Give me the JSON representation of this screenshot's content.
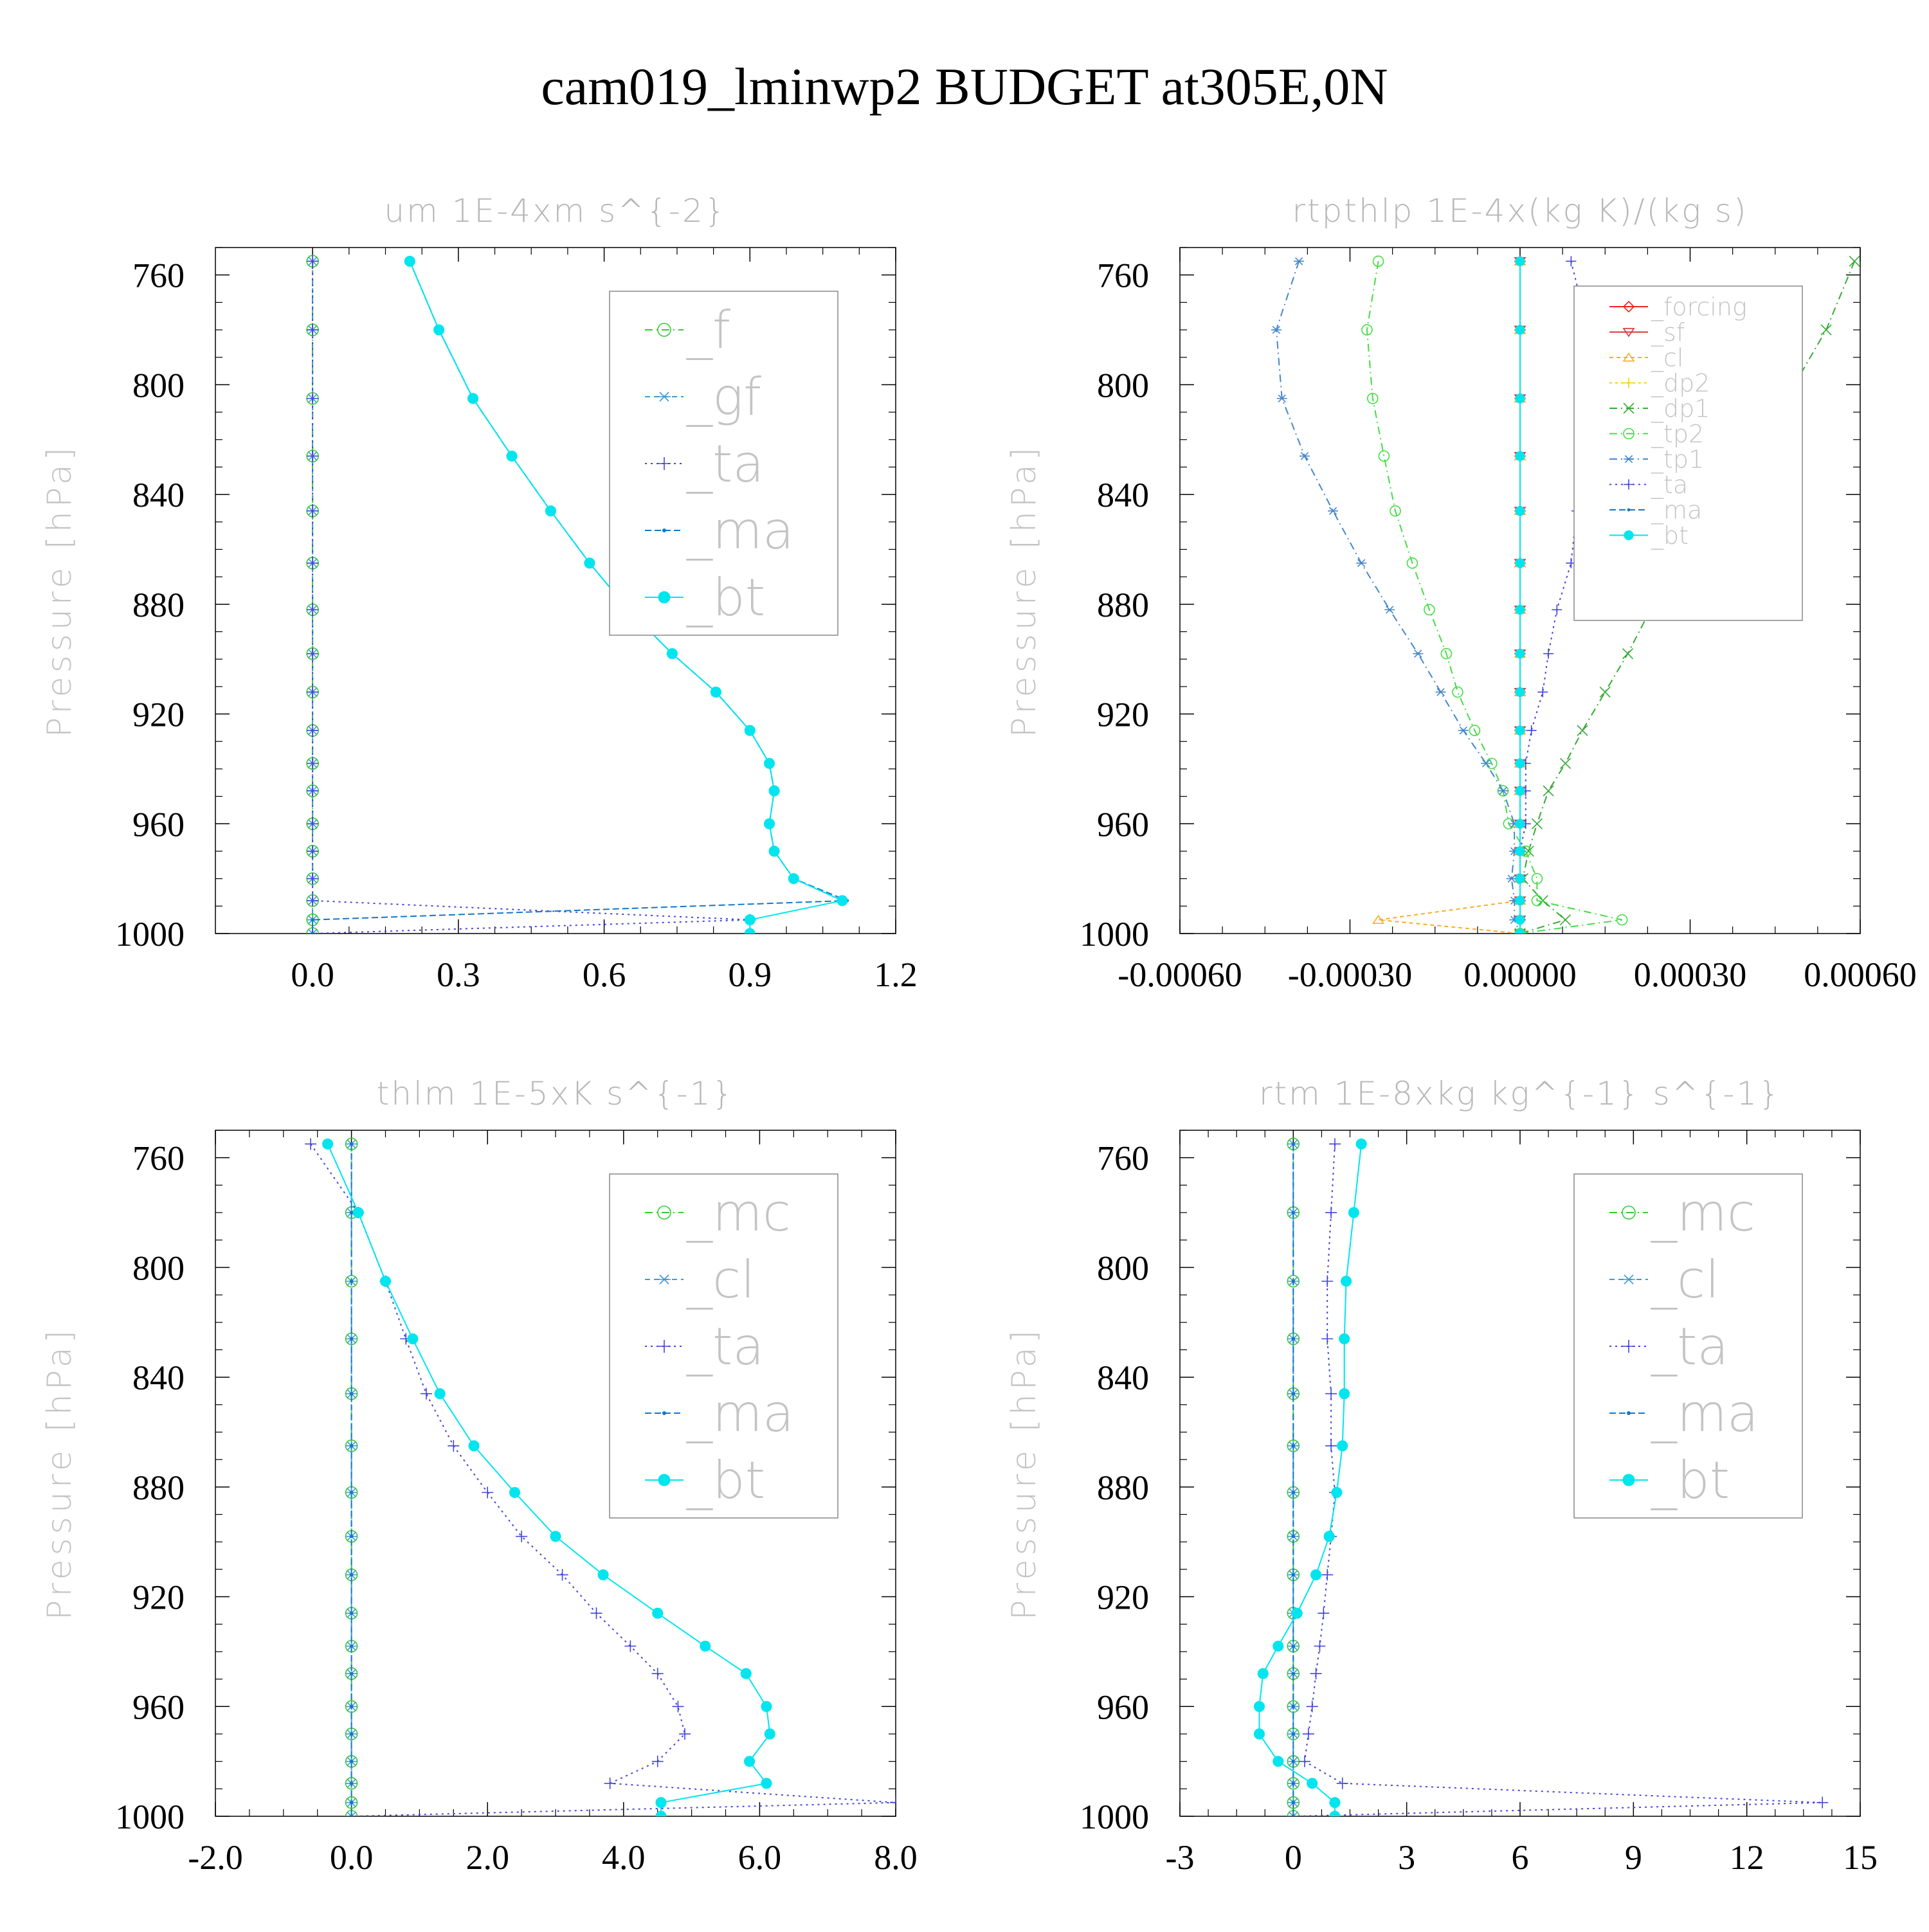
{
  "figure": {
    "title": "cam019_lminwp2  BUDGET at305E,0N"
  },
  "chart_data": [
    {
      "type": "line",
      "title": "um   1E-4xm s^{-2}",
      "ylabel": "Pressure [hPa]",
      "xlim": [
        -0.2,
        1.2
      ],
      "ylim": [
        1000,
        750
      ],
      "xticks": [
        0.0,
        0.3,
        0.6,
        0.9,
        1.2
      ],
      "xtick_labels": [
        "0.0",
        "0.3",
        "0.6",
        "0.9",
        "1.2"
      ],
      "yticks": [
        760,
        800,
        840,
        880,
        920,
        960,
        1000
      ],
      "legend_position": "upper-right",
      "legend_size": "large",
      "y": [
        755,
        780,
        805,
        826,
        846,
        865,
        882,
        898,
        912,
        926,
        938,
        948,
        960,
        970,
        980,
        988,
        995,
        1000
      ],
      "series": [
        {
          "name": "_f",
          "color": "#33cc33",
          "dash": "12 6 2 6",
          "marker": "circle-open",
          "x": [
            0,
            0,
            0,
            0,
            0,
            0,
            0,
            0,
            0,
            0,
            0,
            0,
            0,
            0,
            0,
            0,
            0,
            0
          ]
        },
        {
          "name": "_gf",
          "color": "#4499cc",
          "dash": "8 6",
          "marker": "asterisk",
          "x": [
            0,
            0,
            0,
            0,
            0,
            0,
            0,
            0,
            0,
            0,
            0,
            0,
            0,
            0,
            0,
            0,
            0,
            0
          ]
        },
        {
          "name": "_ta",
          "color": "#4444dd",
          "dash": "3 6",
          "marker": "plus",
          "x": [
            0,
            0,
            0,
            0,
            0,
            0,
            0,
            0,
            0,
            0,
            0,
            0,
            0,
            0,
            0,
            0,
            0.9,
            0
          ]
        },
        {
          "name": "_ma",
          "color": "#1177cc",
          "dash": "10 5",
          "marker": "dot",
          "x": [
            0.2,
            0.26,
            0.33,
            0.41,
            0.49,
            0.57,
            0.65,
            0.74,
            0.83,
            0.9,
            0.94,
            0.95,
            0.94,
            0.95,
            0.99,
            1.1,
            0,
            0
          ]
        },
        {
          "name": "_bt",
          "color": "#00e5ee",
          "dash": "",
          "marker": "dot-filled",
          "x": [
            0.2,
            0.26,
            0.33,
            0.41,
            0.49,
            0.57,
            0.65,
            0.74,
            0.83,
            0.9,
            0.94,
            0.95,
            0.94,
            0.95,
            0.99,
            1.09,
            0.9,
            0.9
          ]
        }
      ]
    },
    {
      "type": "line",
      "title": "rtpthlp   1E-4x(kg K)/(kg s)",
      "ylabel": "Pressure [hPa]",
      "xlim": [
        -0.0006,
        0.0006
      ],
      "ylim": [
        1000,
        750
      ],
      "xticks": [
        -0.0006,
        -0.0003,
        0.0,
        0.0003,
        0.0006
      ],
      "xtick_labels": [
        "-0.00060",
        "-0.00030",
        "0.00000",
        "0.00030",
        "0.00060"
      ],
      "yticks": [
        760,
        800,
        840,
        880,
        920,
        960,
        1000
      ],
      "legend_position": "upper-right",
      "legend_size": "small",
      "y": [
        755,
        780,
        805,
        826,
        846,
        865,
        882,
        898,
        912,
        926,
        938,
        948,
        960,
        970,
        980,
        988,
        995,
        1000
      ],
      "series": [
        {
          "name": "_forcing",
          "color": "#ee2222",
          "dash": "",
          "marker": "diamond-open",
          "x": [
            0,
            0,
            0,
            0,
            0,
            0,
            0,
            0,
            0,
            0,
            0,
            0,
            0,
            0,
            0,
            0,
            0,
            0
          ]
        },
        {
          "name": "_sf",
          "color": "#dd3333",
          "dash": "",
          "marker": "triangle-down",
          "x": [
            0,
            0,
            0,
            0,
            0,
            0,
            0,
            0,
            0,
            0,
            0,
            0,
            0,
            0,
            0,
            0,
            0,
            0
          ]
        },
        {
          "name": "_cl",
          "color": "#ffaa22",
          "dash": "6 5",
          "marker": "triangle-up",
          "x": [
            0,
            0,
            0,
            0,
            0,
            0,
            0,
            0,
            0,
            0,
            0,
            0,
            0,
            0,
            0,
            0,
            -0.00025,
            0
          ]
        },
        {
          "name": "_dp2",
          "color": "#ffcc00",
          "dash": "4 5",
          "marker": "plus",
          "x": [
            0,
            0,
            0,
            0,
            0,
            0,
            0,
            0,
            0,
            0,
            0,
            0,
            0,
            0,
            0,
            0,
            0,
            0
          ]
        },
        {
          "name": "_dp1",
          "color": "#33aa33",
          "dash": "12 6 2 6",
          "marker": "x",
          "x": [
            0.00059,
            0.00054,
            0.00047,
            0.0004,
            0.00034,
            0.00028,
            0.00023,
            0.00019,
            0.00015,
            0.00011,
            8e-05,
            5e-05,
            3e-05,
            1.5e-05,
            5e-06,
            4e-05,
            8e-05,
            0
          ]
        },
        {
          "name": "_tp2",
          "color": "#44dd44",
          "dash": "12 6 2 6",
          "marker": "circle-open",
          "x": [
            -0.00025,
            -0.00027,
            -0.00026,
            -0.00024,
            -0.00022,
            -0.00019,
            -0.00016,
            -0.00013,
            -0.00011,
            -8e-05,
            -5e-05,
            -3e-05,
            -2e-05,
            1e-05,
            3e-05,
            3e-05,
            0.00018,
            0
          ]
        },
        {
          "name": "_tp1",
          "color": "#4488cc",
          "dash": "12 6 2 6",
          "marker": "asterisk",
          "x": [
            -0.00039,
            -0.00043,
            -0.00042,
            -0.00038,
            -0.00033,
            -0.00028,
            -0.00023,
            -0.00018,
            -0.00014,
            -0.0001,
            -6e-05,
            -3e-05,
            -1e-05,
            -1e-05,
            -1.5e-05,
            -1e-05,
            -1e-05,
            0
          ]
        },
        {
          "name": "_ta",
          "color": "#4444dd",
          "dash": "3 6",
          "marker": "plus",
          "x": [
            9e-05,
            0.00012,
            0.00012,
            0.00011,
            0.0001,
            9e-05,
            6.5e-05,
            5e-05,
            4e-05,
            2e-05,
            1e-05,
            1e-05,
            1e-05,
            0,
            0,
            0,
            0,
            0
          ]
        },
        {
          "name": "_ma",
          "color": "#1177cc",
          "dash": "10 5",
          "marker": "dot",
          "x": [
            0,
            0,
            0,
            0,
            0,
            0,
            0,
            0,
            0,
            0,
            0,
            0,
            0,
            0,
            0,
            0,
            0,
            0
          ]
        },
        {
          "name": "_bt",
          "color": "#00e5ee",
          "dash": "",
          "marker": "dot-filled",
          "x": [
            0,
            0,
            0,
            0,
            0,
            0,
            0,
            0,
            0,
            0,
            0,
            0,
            0,
            0,
            0,
            0,
            0,
            0
          ]
        }
      ]
    },
    {
      "type": "line",
      "title": "thlm   1E-5xK s^{-1}",
      "ylabel": "Pressure [hPa]",
      "xlim": [
        -2,
        8
      ],
      "ylim": [
        1000,
        750
      ],
      "xticks": [
        -2,
        0,
        2,
        4,
        6,
        8
      ],
      "xtick_labels": [
        "-2.0",
        "0.0",
        "2.0",
        "4.0",
        "6.0",
        "8.0"
      ],
      "yticks": [
        760,
        800,
        840,
        880,
        920,
        960,
        1000
      ],
      "legend_position": "upper-right",
      "legend_size": "large",
      "y": [
        755,
        780,
        805,
        826,
        846,
        865,
        882,
        898,
        912,
        926,
        938,
        948,
        960,
        970,
        980,
        988,
        995,
        1000
      ],
      "series": [
        {
          "name": "_mc",
          "color": "#33cc33",
          "dash": "12 6 2 6",
          "marker": "circle-open",
          "x": [
            0,
            0,
            0,
            0,
            0,
            0,
            0,
            0,
            0,
            0,
            0,
            0,
            0,
            0,
            0,
            0,
            0,
            0
          ]
        },
        {
          "name": "_cl",
          "color": "#4499cc",
          "dash": "8 6",
          "marker": "asterisk",
          "x": [
            0,
            0,
            0,
            0,
            0,
            0,
            0,
            0,
            0,
            0,
            0,
            0,
            0,
            0,
            0,
            0,
            0,
            0
          ]
        },
        {
          "name": "_ta",
          "color": "#4444dd",
          "dash": "3 6",
          "marker": "plus",
          "x": [
            -0.6,
            0.1,
            0.5,
            0.8,
            1.1,
            1.5,
            2.0,
            2.5,
            3.1,
            3.6,
            4.1,
            4.5,
            4.8,
            4.9,
            4.5,
            3.8,
            8.0,
            0
          ]
        },
        {
          "name": "_ma",
          "color": "#1177cc",
          "dash": "10 5",
          "marker": "dot",
          "x": [
            0,
            0,
            0,
            0,
            0,
            0,
            0,
            0,
            0,
            0,
            0,
            0,
            0,
            0,
            0,
            0,
            0,
            0
          ]
        },
        {
          "name": "_bt",
          "color": "#00e5ee",
          "dash": "",
          "marker": "dot-filled",
          "x": [
            -0.35,
            0.1,
            0.5,
            0.9,
            1.3,
            1.8,
            2.4,
            3.0,
            3.7,
            4.5,
            5.2,
            5.8,
            6.1,
            6.15,
            5.85,
            6.1,
            4.55,
            4.55
          ]
        }
      ]
    },
    {
      "type": "line",
      "title": "rtm   1E-8xkg kg^{-1} s^{-1}",
      "ylabel": "Pressure [hPa]",
      "xlim": [
        -3,
        15
      ],
      "ylim": [
        1000,
        750
      ],
      "xticks": [
        -3,
        0,
        3,
        6,
        9,
        12,
        15
      ],
      "xtick_labels": [
        "-3",
        "0",
        "3",
        "6",
        "9",
        "12",
        "15"
      ],
      "yticks": [
        760,
        800,
        840,
        880,
        920,
        960,
        1000
      ],
      "legend_position": "upper-right",
      "legend_size": "large",
      "y": [
        755,
        780,
        805,
        826,
        846,
        865,
        882,
        898,
        912,
        926,
        938,
        948,
        960,
        970,
        980,
        988,
        995,
        1000
      ],
      "series": [
        {
          "name": "_mc",
          "color": "#33cc33",
          "dash": "12 6 2 6",
          "marker": "circle-open",
          "x": [
            0,
            0,
            0,
            0,
            0,
            0,
            0,
            0,
            0,
            0,
            0,
            0,
            0,
            0,
            0,
            0,
            0,
            0
          ]
        },
        {
          "name": "_cl",
          "color": "#4499cc",
          "dash": "8 6",
          "marker": "asterisk",
          "x": [
            0,
            0,
            0,
            0,
            0,
            0,
            0,
            0,
            0,
            0,
            0,
            0,
            0,
            0,
            0,
            0,
            0,
            0
          ]
        },
        {
          "name": "_ta",
          "color": "#4444dd",
          "dash": "3 6",
          "marker": "plus",
          "x": [
            1.1,
            1.0,
            0.9,
            0.9,
            1.0,
            1.0,
            1.1,
            1.0,
            0.9,
            0.8,
            0.7,
            0.6,
            0.5,
            0.4,
            0.3,
            1.3,
            14.0,
            0
          ]
        },
        {
          "name": "_ma",
          "color": "#1177cc",
          "dash": "10 5",
          "marker": "dot",
          "x": [
            0,
            0,
            0,
            0,
            0,
            0,
            0,
            0,
            0,
            0,
            0,
            0,
            0,
            0,
            0,
            0,
            0,
            0
          ]
        },
        {
          "name": "_bt",
          "color": "#00e5ee",
          "dash": "",
          "marker": "dot-filled",
          "x": [
            1.8,
            1.6,
            1.4,
            1.35,
            1.35,
            1.3,
            1.15,
            0.95,
            0.6,
            0.1,
            -0.4,
            -0.8,
            -0.9,
            -0.9,
            -0.4,
            0.5,
            1.1,
            1.1
          ]
        }
      ]
    }
  ]
}
